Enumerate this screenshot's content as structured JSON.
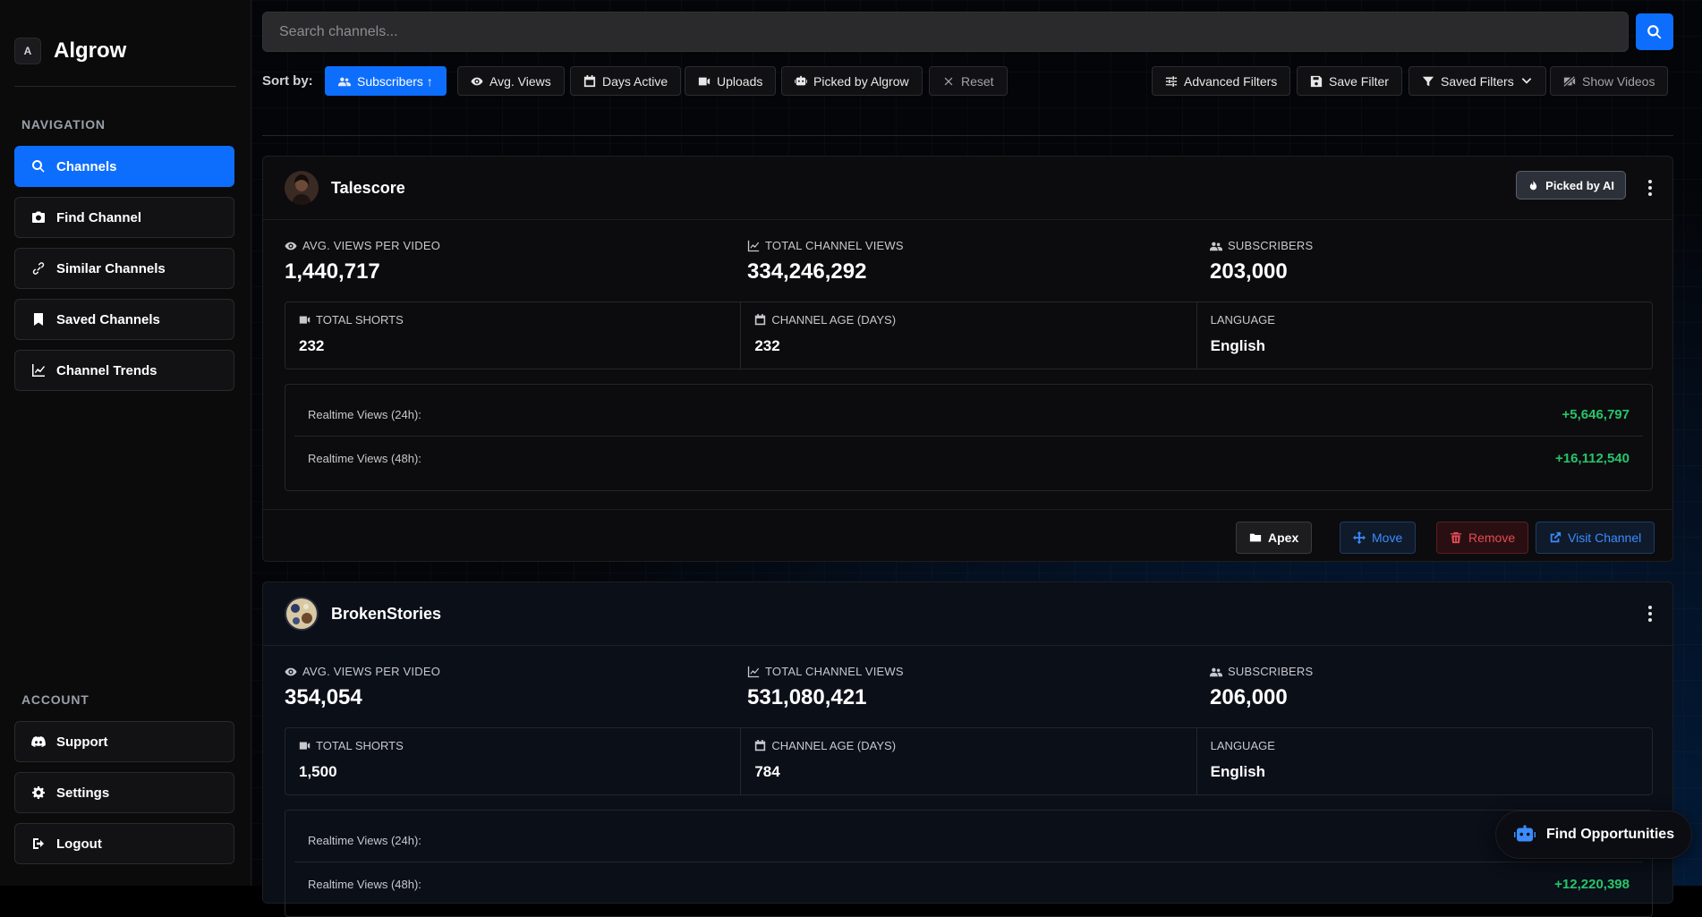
{
  "app": {
    "name": "Algrow",
    "logo_text": "A"
  },
  "sidebar": {
    "nav_label": "NAVIGATION",
    "nav_items": [
      {
        "label": "Channels",
        "icon": "search-icon",
        "active": true
      },
      {
        "label": "Find Channel",
        "icon": "camera-icon"
      },
      {
        "label": "Similar Channels",
        "icon": "link-icon"
      },
      {
        "label": "Saved Channels",
        "icon": "bookmark-icon"
      },
      {
        "label": "Channel Trends",
        "icon": "chart-line-icon"
      }
    ],
    "account_label": "ACCOUNT",
    "account_items": [
      {
        "label": "Support",
        "icon": "discord-icon"
      },
      {
        "label": "Settings",
        "icon": "gear-icon"
      },
      {
        "label": "Logout",
        "icon": "logout-icon"
      }
    ]
  },
  "search": {
    "placeholder": "Search channels..."
  },
  "toolbar": {
    "sort_label": "Sort by:",
    "sort_options": [
      {
        "label": "Subscribers ↑",
        "icon": "users-icon",
        "active": true
      },
      {
        "label": "Avg. Views",
        "icon": "eye-icon"
      },
      {
        "label": "Days Active",
        "icon": "calendar-icon"
      },
      {
        "label": "Uploads",
        "icon": "video-icon"
      },
      {
        "label": "Picked by Algrow",
        "icon": "robot-icon"
      },
      {
        "label": "Reset",
        "icon": "x-icon"
      }
    ],
    "right_buttons": [
      {
        "label": "Advanced Filters",
        "icon": "sliders-icon"
      },
      {
        "label": "Save Filter",
        "icon": "save-icon"
      },
      {
        "label": "Saved Filters",
        "icon": "filter-icon"
      },
      {
        "label": "Show Videos",
        "icon": "video-slash-icon"
      }
    ]
  },
  "labels": {
    "avg_views": "AVG. VIEWS PER VIDEO",
    "total_views": "TOTAL CHANNEL VIEWS",
    "subscribers": "SUBSCRIBERS",
    "total_shorts": "TOTAL SHORTS",
    "channel_age": "CHANNEL AGE (DAYS)",
    "language": "LANGUAGE",
    "rt24": "Realtime Views (24h):",
    "rt48": "Realtime Views (48h):"
  },
  "channels": [
    {
      "name": "Talescore",
      "badge": "Picked by AI",
      "avg_views": "1,440,717",
      "total_views": "334,246,292",
      "subscribers": "203,000",
      "total_shorts": "232",
      "channel_age": "232",
      "language": "English",
      "rt24": "+5,646,797",
      "rt48": "+16,112,540",
      "actions": {
        "folder": "Apex",
        "move": "Move",
        "remove": "Remove",
        "visit": "Visit Channel"
      }
    },
    {
      "name": "BrokenStories",
      "avg_views": "354,054",
      "total_views": "531,080,421",
      "subscribers": "206,000",
      "total_shorts": "1,500",
      "channel_age": "784",
      "language": "English",
      "rt48": "+12,220,398"
    }
  ],
  "fab": {
    "label": "Find Opportunities"
  },
  "colors": {
    "accent": "#0d6efd",
    "positive": "#27c46b",
    "danger": "#e44b55"
  }
}
